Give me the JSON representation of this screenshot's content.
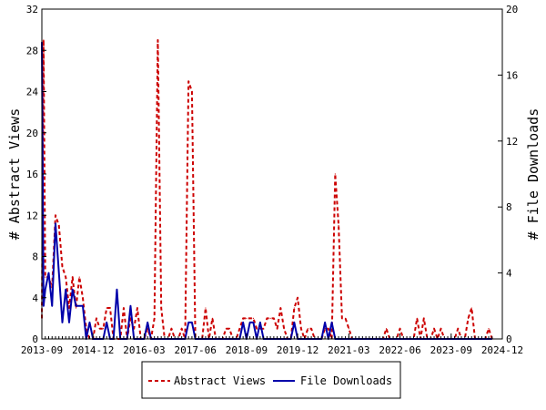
{
  "chart_data": {
    "type": "line",
    "title": "",
    "x_tick_labels": [
      "2013-09",
      "2014-12",
      "2016-03",
      "2017-06",
      "2018-09",
      "2019-12",
      "2021-03",
      "2022-06",
      "2023-09",
      "2024-12"
    ],
    "y_left": {
      "label": "# Abstract Views",
      "ylim": [
        0,
        32
      ],
      "ticks": [
        0,
        4,
        8,
        12,
        16,
        20,
        24,
        28,
        32
      ]
    },
    "y_right": {
      "label": "# File Downloads",
      "ylim": [
        0,
        20
      ],
      "ticks": [
        0,
        4,
        8,
        12,
        16,
        20
      ]
    },
    "grid": false,
    "legend_position": "bottom",
    "colors": {
      "abstract_views": "#cc0000",
      "file_downloads": "#0000aa"
    },
    "series": [
      {
        "name": "Abstract Views",
        "axis": "left",
        "style": "dashed",
        "points": [
          [
            0,
            2
          ],
          [
            0.5,
            29
          ],
          [
            1,
            6
          ],
          [
            2,
            6
          ],
          [
            3,
            5
          ],
          [
            4,
            12
          ],
          [
            5,
            11
          ],
          [
            6,
            7
          ],
          [
            7,
            6
          ],
          [
            8,
            3
          ],
          [
            9,
            6
          ],
          [
            10,
            3
          ],
          [
            11,
            6
          ],
          [
            12,
            4
          ],
          [
            13,
            1
          ],
          [
            14,
            0
          ],
          [
            15,
            0
          ],
          [
            16,
            2
          ],
          [
            17,
            1
          ],
          [
            18,
            1
          ],
          [
            19,
            3
          ],
          [
            20,
            3
          ],
          [
            21,
            0
          ],
          [
            22,
            0
          ],
          [
            23,
            0
          ],
          [
            24,
            3
          ],
          [
            25,
            0
          ],
          [
            26,
            2
          ],
          [
            27,
            1
          ],
          [
            28,
            3
          ],
          [
            29,
            0
          ],
          [
            30,
            0
          ],
          [
            31,
            1
          ],
          [
            32,
            0
          ],
          [
            33,
            2
          ],
          [
            34,
            29
          ],
          [
            35,
            3
          ],
          [
            36,
            0
          ],
          [
            37,
            0
          ],
          [
            38,
            1
          ],
          [
            39,
            0
          ],
          [
            40,
            0
          ],
          [
            41,
            1
          ],
          [
            42,
            0
          ],
          [
            43,
            25
          ],
          [
            44,
            24
          ],
          [
            45,
            0
          ],
          [
            46,
            0
          ],
          [
            47,
            0
          ],
          [
            48,
            3
          ],
          [
            49,
            0
          ],
          [
            50,
            2
          ],
          [
            51,
            0
          ],
          [
            52,
            0
          ],
          [
            53,
            0
          ],
          [
            54,
            1
          ],
          [
            55,
            1
          ],
          [
            56,
            0
          ],
          [
            57,
            0
          ],
          [
            58,
            1
          ],
          [
            59,
            2
          ],
          [
            60,
            2
          ],
          [
            61,
            2
          ],
          [
            62,
            2
          ],
          [
            63,
            1
          ],
          [
            64,
            1
          ],
          [
            65,
            1
          ],
          [
            66,
            2
          ],
          [
            67,
            2
          ],
          [
            68,
            2
          ],
          [
            69,
            1
          ],
          [
            70,
            3
          ],
          [
            71,
            1
          ],
          [
            72,
            0
          ],
          [
            73,
            0
          ],
          [
            74,
            3
          ],
          [
            75,
            4
          ],
          [
            76,
            1
          ],
          [
            77,
            0
          ],
          [
            78,
            1
          ],
          [
            79,
            1
          ],
          [
            80,
            0
          ],
          [
            81,
            0
          ],
          [
            82,
            0
          ],
          [
            83,
            1
          ],
          [
            84,
            1
          ],
          [
            85,
            0
          ],
          [
            86,
            16
          ],
          [
            87,
            11
          ],
          [
            88,
            2
          ],
          [
            89,
            2
          ],
          [
            90,
            1
          ],
          [
            91,
            0
          ],
          [
            92,
            0
          ],
          [
            93,
            0
          ],
          [
            94,
            0
          ],
          [
            95,
            0
          ],
          [
            96,
            0
          ],
          [
            97,
            0
          ],
          [
            98,
            0
          ],
          [
            99,
            0
          ],
          [
            100,
            0
          ],
          [
            101,
            1
          ],
          [
            102,
            0
          ],
          [
            103,
            0
          ],
          [
            104,
            0
          ],
          [
            105,
            1
          ],
          [
            106,
            0
          ],
          [
            107,
            0
          ],
          [
            108,
            0
          ],
          [
            109,
            0
          ],
          [
            110,
            2
          ],
          [
            111,
            0
          ],
          [
            112,
            2
          ],
          [
            113,
            0
          ],
          [
            114,
            0
          ],
          [
            115,
            1
          ],
          [
            116,
            0
          ],
          [
            117,
            1
          ],
          [
            118,
            0
          ],
          [
            119,
            0
          ],
          [
            120,
            0
          ],
          [
            121,
            0
          ],
          [
            122,
            1
          ],
          [
            123,
            0
          ],
          [
            124,
            0
          ],
          [
            125,
            2
          ],
          [
            126,
            3
          ],
          [
            127,
            0
          ],
          [
            128,
            0
          ],
          [
            129,
            0
          ],
          [
            130,
            0
          ],
          [
            131,
            1
          ],
          [
            132,
            0
          ]
        ]
      },
      {
        "name": "File Downloads",
        "axis": "right",
        "style": "solid",
        "points": [
          [
            0,
            18
          ],
          [
            0.5,
            2
          ],
          [
            1,
            3
          ],
          [
            2,
            4
          ],
          [
            3,
            2
          ],
          [
            4,
            7
          ],
          [
            5,
            4
          ],
          [
            6,
            1
          ],
          [
            7,
            3
          ],
          [
            8,
            1
          ],
          [
            9,
            3
          ],
          [
            10,
            2
          ],
          [
            11,
            2
          ],
          [
            12,
            2
          ],
          [
            13,
            0
          ],
          [
            14,
            1
          ],
          [
            15,
            0
          ],
          [
            16,
            0
          ],
          [
            17,
            0
          ],
          [
            18,
            0
          ],
          [
            19,
            1
          ],
          [
            20,
            0
          ],
          [
            21,
            0
          ],
          [
            22,
            3
          ],
          [
            23,
            0
          ],
          [
            24,
            0
          ],
          [
            25,
            0
          ],
          [
            26,
            2
          ],
          [
            27,
            0
          ],
          [
            28,
            0
          ],
          [
            29,
            0
          ],
          [
            30,
            0
          ],
          [
            31,
            1
          ],
          [
            32,
            0
          ],
          [
            33,
            0
          ],
          [
            34,
            0
          ],
          [
            35,
            0
          ],
          [
            36,
            0
          ],
          [
            37,
            0
          ],
          [
            38,
            0
          ],
          [
            39,
            0
          ],
          [
            40,
            0
          ],
          [
            41,
            0
          ],
          [
            42,
            0
          ],
          [
            43,
            1
          ],
          [
            44,
            1
          ],
          [
            45,
            0
          ],
          [
            46,
            0
          ],
          [
            47,
            0
          ],
          [
            48,
            0
          ],
          [
            49,
            0
          ],
          [
            50,
            0
          ],
          [
            51,
            0
          ],
          [
            52,
            0
          ],
          [
            53,
            0
          ],
          [
            54,
            0
          ],
          [
            55,
            0
          ],
          [
            56,
            0
          ],
          [
            57,
            0
          ],
          [
            58,
            0
          ],
          [
            59,
            1
          ],
          [
            60,
            0
          ],
          [
            61,
            1
          ],
          [
            62,
            1
          ],
          [
            63,
            0
          ],
          [
            64,
            1
          ],
          [
            65,
            0
          ],
          [
            66,
            0
          ],
          [
            67,
            0
          ],
          [
            68,
            0
          ],
          [
            69,
            0
          ],
          [
            70,
            0
          ],
          [
            71,
            0
          ],
          [
            72,
            0
          ],
          [
            73,
            0
          ],
          [
            74,
            1
          ],
          [
            75,
            0
          ],
          [
            76,
            0
          ],
          [
            77,
            0
          ],
          [
            78,
            0
          ],
          [
            79,
            0
          ],
          [
            80,
            0
          ],
          [
            81,
            0
          ],
          [
            82,
            0
          ],
          [
            83,
            1
          ],
          [
            84,
            0
          ],
          [
            85,
            1
          ],
          [
            86,
            0
          ],
          [
            87,
            0
          ],
          [
            88,
            0
          ],
          [
            89,
            0
          ],
          [
            90,
            0
          ],
          [
            91,
            0
          ],
          [
            92,
            0
          ],
          [
            93,
            0
          ],
          [
            94,
            0
          ],
          [
            95,
            0
          ],
          [
            96,
            0
          ],
          [
            97,
            0
          ],
          [
            98,
            0
          ],
          [
            99,
            0
          ],
          [
            100,
            0
          ],
          [
            101,
            0
          ],
          [
            102,
            0
          ],
          [
            103,
            0
          ],
          [
            104,
            0
          ],
          [
            105,
            0
          ],
          [
            106,
            0
          ],
          [
            107,
            0
          ],
          [
            108,
            0
          ],
          [
            109,
            0
          ],
          [
            110,
            0
          ],
          [
            111,
            0
          ],
          [
            112,
            0
          ],
          [
            113,
            0
          ],
          [
            114,
            0
          ],
          [
            115,
            0
          ],
          [
            116,
            0
          ],
          [
            117,
            0
          ],
          [
            118,
            0
          ],
          [
            119,
            0
          ],
          [
            120,
            0
          ],
          [
            121,
            0
          ],
          [
            122,
            0
          ],
          [
            123,
            0
          ],
          [
            124,
            0
          ],
          [
            125,
            0
          ],
          [
            126,
            0
          ],
          [
            127,
            0
          ],
          [
            128,
            0
          ],
          [
            129,
            0
          ],
          [
            130,
            0
          ],
          [
            131,
            0
          ],
          [
            132,
            0
          ]
        ]
      }
    ],
    "x_range": [
      0,
      132
    ],
    "x_tick_positions": [
      0,
      15,
      30,
      45,
      60,
      75,
      90,
      105,
      120,
      135
    ]
  }
}
